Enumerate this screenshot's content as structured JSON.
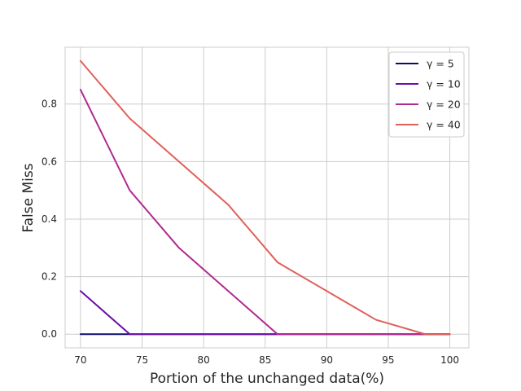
{
  "chart_data": {
    "type": "line",
    "title": "",
    "xlabel": "Portion of the unchanged data(%)",
    "ylabel": "False Miss",
    "xlim": [
      68.75,
      101.55
    ],
    "ylim": [
      -0.0475,
      0.9975
    ],
    "xticks": [
      70,
      75,
      80,
      85,
      90,
      95,
      100
    ],
    "yticks": [
      0.0,
      0.2,
      0.4,
      0.6,
      0.8
    ],
    "ytick_labels": [
      "0.0",
      "0.2",
      "0.4",
      "0.6",
      "0.8"
    ],
    "grid": true,
    "legend_position": "top-right",
    "x": [
      70,
      74,
      78,
      82,
      86,
      90,
      94,
      98,
      100
    ],
    "series": [
      {
        "name": "γ = 5",
        "color": "#0b0b6e",
        "values": [
          0,
          0,
          0,
          0,
          0,
          0,
          0,
          0,
          0
        ]
      },
      {
        "name": "γ = 10",
        "color": "#6a0dad",
        "values": [
          0.15,
          0,
          0,
          0,
          0,
          0,
          0,
          0,
          0
        ]
      },
      {
        "name": "γ = 20",
        "color": "#b02a8f",
        "values": [
          0.85,
          0.5,
          0.3,
          0.15,
          0,
          0,
          0,
          0,
          0
        ]
      },
      {
        "name": "γ = 40",
        "color": "#e0605a",
        "values": [
          0.95,
          0.75,
          0.6,
          0.45,
          0.25,
          0.15,
          0.05,
          0,
          0
        ]
      }
    ]
  }
}
